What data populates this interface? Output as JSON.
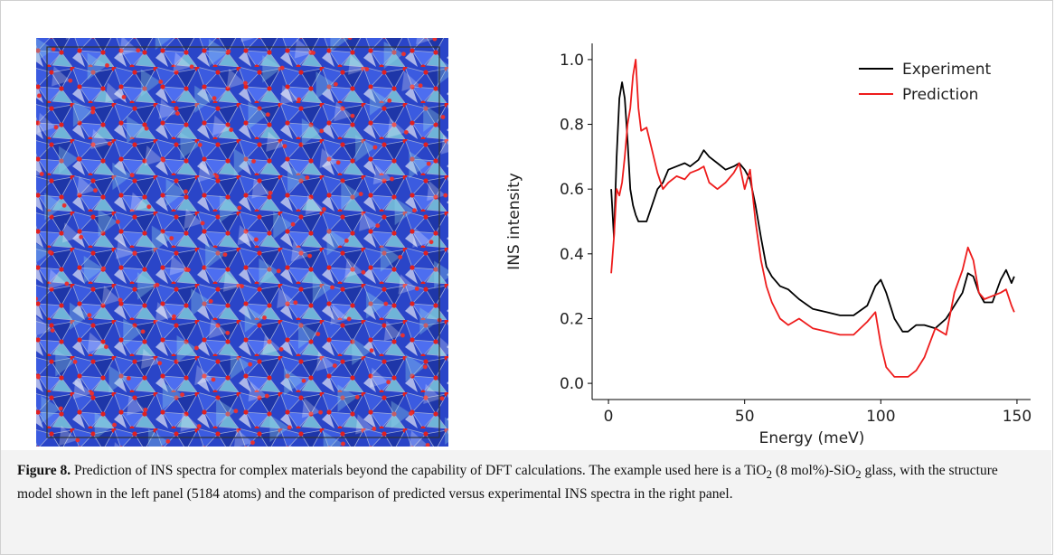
{
  "chart_data": {
    "type": "line",
    "xlabel": "Energy (meV)",
    "ylabel": "INS intensity",
    "xlim": [
      -6,
      155
    ],
    "ylim": [
      -0.05,
      1.05
    ],
    "xticks": [
      0,
      50,
      100,
      150
    ],
    "yticks": [
      {
        "value": 0,
        "label": "0.0"
      },
      {
        "value": 0.2,
        "label": "0.2"
      },
      {
        "value": 0.4,
        "label": "0.4"
      },
      {
        "value": 0.6,
        "label": "0.6"
      },
      {
        "value": 0.8,
        "label": "0.8"
      },
      {
        "value": 1.0,
        "label": "1.0"
      }
    ],
    "legend": "upper right",
    "x": [
      1,
      2,
      3,
      4,
      5,
      6,
      7,
      8,
      9,
      10,
      11,
      12,
      14,
      16,
      18,
      20,
      22,
      25,
      28,
      30,
      33,
      35,
      37,
      40,
      43,
      46,
      48,
      50,
      52,
      54,
      56,
      58,
      60,
      63,
      66,
      70,
      75,
      80,
      85,
      90,
      95,
      98,
      100,
      102,
      105,
      108,
      110,
      113,
      116,
      120,
      124,
      127,
      130,
      132,
      134,
      136,
      138,
      141,
      144,
      146,
      148,
      149
    ],
    "series": [
      {
        "name": "Experiment",
        "color": "#000000",
        "values": [
          0.6,
          0.45,
          0.7,
          0.88,
          0.93,
          0.88,
          0.75,
          0.6,
          0.55,
          0.52,
          0.5,
          0.5,
          0.5,
          0.55,
          0.6,
          0.62,
          0.66,
          0.67,
          0.68,
          0.67,
          0.69,
          0.72,
          0.7,
          0.68,
          0.66,
          0.67,
          0.68,
          0.66,
          0.63,
          0.55,
          0.45,
          0.36,
          0.33,
          0.3,
          0.29,
          0.26,
          0.23,
          0.22,
          0.21,
          0.21,
          0.24,
          0.3,
          0.32,
          0.28,
          0.2,
          0.16,
          0.16,
          0.18,
          0.18,
          0.17,
          0.2,
          0.24,
          0.28,
          0.34,
          0.33,
          0.28,
          0.25,
          0.25,
          0.32,
          0.35,
          0.31,
          0.33
        ]
      },
      {
        "name": "Prediction",
        "color": "#ee1c1c",
        "values": [
          0.34,
          0.45,
          0.6,
          0.58,
          0.62,
          0.7,
          0.8,
          0.85,
          0.95,
          1.0,
          0.85,
          0.78,
          0.79,
          0.72,
          0.65,
          0.6,
          0.62,
          0.64,
          0.63,
          0.65,
          0.66,
          0.67,
          0.62,
          0.6,
          0.62,
          0.65,
          0.68,
          0.6,
          0.66,
          0.5,
          0.38,
          0.3,
          0.25,
          0.2,
          0.18,
          0.2,
          0.17,
          0.16,
          0.15,
          0.15,
          0.19,
          0.22,
          0.12,
          0.05,
          0.02,
          0.02,
          0.02,
          0.04,
          0.08,
          0.17,
          0.15,
          0.28,
          0.35,
          0.42,
          0.38,
          0.28,
          0.26,
          0.27,
          0.28,
          0.29,
          0.24,
          0.22
        ]
      }
    ]
  },
  "caption": {
    "label": "Figure 8.",
    "parts": [
      "Prediction of INS spectra for complex materials beyond the capability of DFT calculations. The example used here is a TiO",
      "2",
      " (8 mol%)-SiO",
      "2",
      " glass, with the structure model shown in the left panel (5184 atoms) and the comparison of predicted versus experimental INS spectra in the right panel."
    ]
  }
}
